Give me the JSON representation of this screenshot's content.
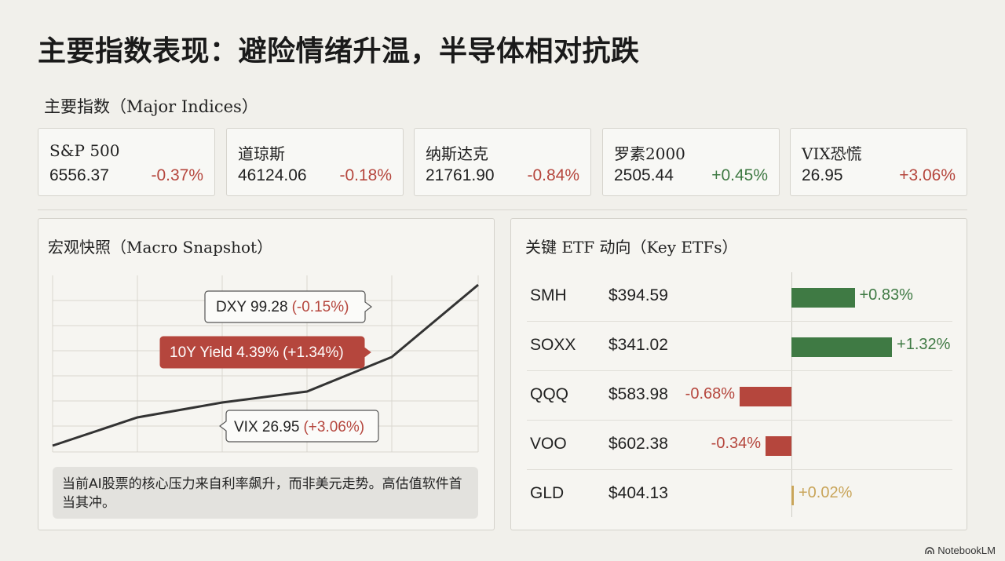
{
  "title": "主要指数表现：避险情绪升温，半导体相对抗跌",
  "indices_label": "主要指数（Major Indices）",
  "indices": [
    {
      "name": "S&P 500",
      "value": "6556.37",
      "change": "-0.37%",
      "dir": "neg"
    },
    {
      "name": "道琼斯",
      "value": "46124.06",
      "change": "-0.18%",
      "dir": "neg"
    },
    {
      "name": "纳斯达克",
      "value": "21761.90",
      "change": "-0.84%",
      "dir": "neg"
    },
    {
      "name": "罗素2000",
      "value": "2505.44",
      "change": "+0.45%",
      "dir": "pos"
    },
    {
      "name": "VIX恐慌",
      "value": "26.95",
      "change": "+3.06%",
      "dir": "neg"
    }
  ],
  "macro": {
    "title": "宏观快照（Macro Snapshot）",
    "callouts": [
      {
        "label": "DXY 99.28",
        "change": "(-0.15%)",
        "style": "outline"
      },
      {
        "label": "10Y Yield 4.39%",
        "change": "(+1.34%)",
        "style": "filled"
      },
      {
        "label": "VIX 26.95",
        "change": "(+3.06%)",
        "style": "outline"
      }
    ],
    "note": "当前AI股票的核心压力来自利率飙升，而非美元走势。高估值软件首当其冲。"
  },
  "chart_data": [
    {
      "type": "bar",
      "title": "关键 ETF 动向（Key ETFs）",
      "categories": [
        "SMH",
        "SOXX",
        "QQQ",
        "VOO",
        "GLD"
      ],
      "prices": [
        "$394.59",
        "$341.02",
        "$583.98",
        "$602.38",
        "$404.13"
      ],
      "series": [
        {
          "values": [
            0.83,
            1.32,
            -0.68,
            -0.34,
            0.02
          ]
        }
      ],
      "labels": [
        "+0.83%",
        "+1.32%",
        "-0.68%",
        "-0.34%",
        "+0.02%"
      ],
      "orientation": "horizontal",
      "colors": {
        "positive": "#3f7a44",
        "negative": "#b5463d",
        "neutral": "#c9a55a"
      }
    }
  ],
  "colors": {
    "negative": "#b5463d",
    "positive": "#3f7a44",
    "callout_fill": "#b5463d",
    "line": "#333333"
  },
  "brand": "NotebookLM"
}
